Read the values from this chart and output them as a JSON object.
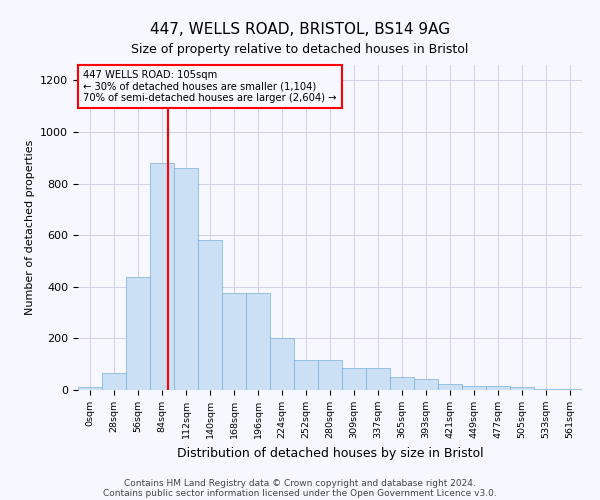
{
  "title1": "447, WELLS ROAD, BRISTOL, BS14 9AG",
  "title2": "Size of property relative to detached houses in Bristol",
  "xlabel": "Distribution of detached houses by size in Bristol",
  "ylabel": "Number of detached properties",
  "bar_color": "#cce0f5",
  "bar_edge_color": "#7ab0d8",
  "categories": [
    "0sqm",
    "28sqm",
    "56sqm",
    "84sqm",
    "112sqm",
    "140sqm",
    "168sqm",
    "196sqm",
    "224sqm",
    "252sqm",
    "280sqm",
    "309sqm",
    "337sqm",
    "365sqm",
    "393sqm",
    "421sqm",
    "449sqm",
    "477sqm",
    "505sqm",
    "533sqm",
    "561sqm"
  ],
  "values": [
    12,
    65,
    440,
    880,
    860,
    580,
    375,
    375,
    200,
    115,
    115,
    85,
    85,
    50,
    42,
    25,
    15,
    15,
    10,
    5,
    5
  ],
  "ylim": [
    0,
    1260
  ],
  "yticks": [
    0,
    200,
    400,
    600,
    800,
    1000,
    1200
  ],
  "annotation_line1": "447 WELLS ROAD: 105sqm",
  "annotation_line2": "← 30% of detached houses are smaller (1,104)",
  "annotation_line3": "70% of semi-detached houses are larger (2,604) →",
  "red_line_bin": 3.75,
  "footer1": "Contains HM Land Registry data © Crown copyright and database right 2024.",
  "footer2": "Contains public sector information licensed under the Open Government Licence v3.0.",
  "bg_color": "#f7f7ff",
  "grid_color": "#d0d0e8"
}
